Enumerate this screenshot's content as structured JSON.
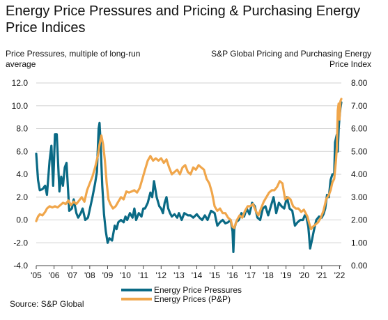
{
  "chart_data": {
    "type": "line",
    "title": "Energy Price Pressures and Pricing & Purchasing Energy Price Indices",
    "left_axis_label": "Price Pressures, multiple of long-run average",
    "right_axis_label": "S&P Global Pricing and Purchasing Energy Price Index",
    "source": "Source: S&P Global",
    "ylim_left": [
      -4.0,
      12.0
    ],
    "ylim_right": [
      0.0,
      8.0
    ],
    "left_ticks": [
      "12.0",
      "10.0",
      "8.0",
      "6.0",
      "4.0",
      "2.0",
      "0.0",
      "-2.0",
      "-4.0"
    ],
    "right_ticks": [
      "8.00",
      "7.00",
      "6.00",
      "5.00",
      "4.00",
      "3.00",
      "2.00",
      "1.00",
      "0.00"
    ],
    "x_ticks": [
      "'05",
      "'06",
      "'07",
      "'08",
      "'09",
      "'10",
      "'11",
      "'12",
      "'13",
      "'14",
      "'15",
      "'16",
      "'17",
      "'18",
      "'19",
      "'20",
      "'21",
      "'22"
    ],
    "xlim": [
      2005.0,
      2022.1
    ],
    "grid": "horizontal",
    "legend_position": "bottom-left",
    "series": [
      {
        "name": "Energy Price Pressures",
        "axis": "left",
        "color": "#0a6a85",
        "x": [
          2005.0,
          2005.1,
          2005.2,
          2005.35,
          2005.5,
          2005.6,
          2005.75,
          2005.85,
          2005.95,
          2006.05,
          2006.15,
          2006.3,
          2006.4,
          2006.5,
          2006.6,
          2006.7,
          2006.85,
          2007.0,
          2007.1,
          2007.25,
          2007.35,
          2007.5,
          2007.6,
          2007.75,
          2007.9,
          2008.0,
          2008.15,
          2008.3,
          2008.4,
          2008.5,
          2008.55,
          2008.6,
          2008.7,
          2008.8,
          2008.9,
          2009.0,
          2009.1,
          2009.25,
          2009.4,
          2009.5,
          2009.6,
          2009.75,
          2009.9,
          2010.0,
          2010.1,
          2010.25,
          2010.4,
          2010.5,
          2010.6,
          2010.75,
          2010.9,
          2011.0,
          2011.1,
          2011.25,
          2011.4,
          2011.5,
          2011.6,
          2011.75,
          2011.9,
          2012.0,
          2012.1,
          2012.2,
          2012.3,
          2012.4,
          2012.5,
          2012.6,
          2012.75,
          2012.9,
          2013.0,
          2013.15,
          2013.3,
          2013.5,
          2013.65,
          2013.8,
          2014.0,
          2014.15,
          2014.3,
          2014.45,
          2014.6,
          2014.8,
          2015.0,
          2015.15,
          2015.3,
          2015.45,
          2015.6,
          2015.75,
          2015.9,
          2016.0,
          2016.05,
          2016.1,
          2016.2,
          2016.35,
          2016.5,
          2016.65,
          2016.8,
          2016.95,
          2017.1,
          2017.25,
          2017.4,
          2017.55,
          2017.7,
          2017.85,
          2018.0,
          2018.15,
          2018.3,
          2018.45,
          2018.6,
          2018.75,
          2018.9,
          2019.05,
          2019.2,
          2019.35,
          2019.5,
          2019.65,
          2019.8,
          2019.95,
          2020.05,
          2020.15,
          2020.25,
          2020.35,
          2020.45,
          2020.55,
          2020.7,
          2020.85,
          2021.0,
          2021.1,
          2021.2,
          2021.3,
          2021.4,
          2021.5,
          2021.6,
          2021.7,
          2021.75,
          2021.85,
          2021.9,
          2021.95,
          2022.0,
          2022.05,
          2022.1
        ],
        "values": [
          5.8,
          3.5,
          2.6,
          2.7,
          3.0,
          2.2,
          5.2,
          6.5,
          3.0,
          7.5,
          7.5,
          2.5,
          3.8,
          3.0,
          4.6,
          5.0,
          0.8,
          1.0,
          1.8,
          0.6,
          0.2,
          0.6,
          1.0,
          0.0,
          0.2,
          0.9,
          2.0,
          3.2,
          4.2,
          8.0,
          8.5,
          7.0,
          3.0,
          0.5,
          -1.0,
          -2.0,
          -1.6,
          -1.8,
          -0.5,
          -0.8,
          -0.2,
          0.0,
          -0.2,
          0.3,
          0.0,
          0.6,
          0.2,
          1.0,
          0.0,
          0.6,
          0.3,
          1.0,
          1.0,
          1.5,
          2.4,
          2.0,
          3.4,
          2.0,
          1.2,
          1.0,
          0.6,
          1.5,
          2.0,
          1.0,
          0.6,
          0.3,
          0.5,
          0.2,
          0.6,
          0.0,
          0.6,
          0.4,
          0.4,
          0.2,
          0.5,
          0.2,
          0.0,
          0.4,
          0.0,
          0.8,
          0.6,
          -0.5,
          -0.2,
          0.0,
          -0.3,
          -0.2,
          0.0,
          -1.0,
          -2.8,
          -0.8,
          -0.2,
          0.0,
          0.6,
          0.3,
          1.0,
          0.5,
          1.5,
          1.2,
          0.2,
          0.0,
          1.0,
          1.2,
          0.4,
          1.2,
          2.0,
          0.6,
          1.5,
          1.2,
          1.0,
          2.0,
          1.0,
          0.8,
          -0.5,
          -0.2,
          0.0,
          0.0,
          0.4,
          0.2,
          -0.6,
          -2.5,
          -1.8,
          -1.0,
          0.0,
          0.3,
          0.2,
          0.5,
          1.0,
          2.2,
          2.0,
          3.5,
          4.0,
          4.0,
          6.8,
          7.5,
          6.0,
          8.0,
          9.0,
          9.8,
          10.3
        ]
      },
      {
        "name": "Energy Prices (P&P)",
        "axis": "right",
        "color": "#f0a64b",
        "x": [
          2005.0,
          2005.1,
          2005.2,
          2005.35,
          2005.5,
          2005.6,
          2005.75,
          2005.9,
          2006.05,
          2006.2,
          2006.35,
          2006.5,
          2006.65,
          2006.8,
          2006.95,
          2007.1,
          2007.25,
          2007.4,
          2007.55,
          2007.7,
          2007.85,
          2008.0,
          2008.15,
          2008.3,
          2008.45,
          2008.55,
          2008.65,
          2008.75,
          2008.85,
          2008.95,
          2009.05,
          2009.15,
          2009.3,
          2009.45,
          2009.6,
          2009.75,
          2009.9,
          2010.05,
          2010.2,
          2010.35,
          2010.5,
          2010.65,
          2010.8,
          2010.95,
          2011.1,
          2011.25,
          2011.4,
          2011.55,
          2011.7,
          2011.85,
          2012.0,
          2012.15,
          2012.3,
          2012.45,
          2012.6,
          2012.75,
          2012.9,
          2013.05,
          2013.2,
          2013.35,
          2013.5,
          2013.65,
          2013.8,
          2013.95,
          2014.1,
          2014.25,
          2014.4,
          2014.55,
          2014.7,
          2014.85,
          2015.0,
          2015.15,
          2015.3,
          2015.45,
          2015.6,
          2015.75,
          2015.9,
          2016.0,
          2016.1,
          2016.25,
          2016.4,
          2016.55,
          2016.7,
          2016.85,
          2017.0,
          2017.15,
          2017.3,
          2017.45,
          2017.6,
          2017.75,
          2017.9,
          2018.05,
          2018.2,
          2018.35,
          2018.5,
          2018.65,
          2018.8,
          2018.95,
          2019.1,
          2019.25,
          2019.4,
          2019.55,
          2019.7,
          2019.85,
          2020.0,
          2020.1,
          2020.2,
          2020.3,
          2020.4,
          2020.5,
          2020.65,
          2020.8,
          2020.95,
          2021.1,
          2021.25,
          2021.4,
          2021.5,
          2021.6,
          2021.7,
          2021.8,
          2021.85,
          2021.9,
          2021.95,
          2022.0,
          2022.05,
          2022.1
        ],
        "values": [
          1.95,
          2.15,
          2.25,
          2.2,
          2.35,
          2.5,
          2.6,
          2.55,
          2.6,
          2.55,
          2.65,
          2.75,
          2.7,
          2.85,
          2.65,
          2.8,
          2.7,
          2.85,
          3.0,
          2.8,
          3.3,
          3.6,
          3.9,
          4.3,
          4.8,
          5.3,
          5.7,
          5.3,
          4.6,
          3.6,
          2.9,
          2.7,
          2.5,
          2.6,
          2.8,
          3.0,
          2.9,
          3.25,
          3.2,
          3.25,
          3.3,
          3.2,
          3.4,
          3.8,
          4.2,
          4.6,
          4.8,
          4.6,
          4.7,
          4.6,
          4.7,
          4.5,
          4.65,
          4.3,
          4.0,
          4.1,
          4.2,
          4.0,
          4.3,
          4.4,
          4.1,
          4.0,
          4.3,
          4.2,
          4.4,
          4.3,
          4.2,
          3.8,
          3.6,
          3.2,
          2.6,
          2.4,
          2.5,
          2.3,
          2.3,
          2.1,
          2.0,
          1.7,
          1.65,
          2.0,
          2.2,
          2.1,
          2.4,
          2.6,
          2.6,
          2.7,
          2.4,
          2.2,
          2.5,
          2.8,
          3.0,
          3.2,
          3.3,
          3.3,
          3.45,
          3.7,
          3.6,
          2.9,
          3.0,
          2.9,
          2.6,
          2.5,
          2.5,
          2.35,
          2.45,
          2.3,
          2.15,
          1.85,
          1.6,
          1.7,
          1.8,
          1.9,
          2.1,
          2.4,
          2.9,
          3.1,
          3.3,
          3.65,
          3.8,
          4.6,
          5.2,
          6.8,
          7.1,
          6.4,
          7.2,
          7.3
        ]
      }
    ]
  }
}
